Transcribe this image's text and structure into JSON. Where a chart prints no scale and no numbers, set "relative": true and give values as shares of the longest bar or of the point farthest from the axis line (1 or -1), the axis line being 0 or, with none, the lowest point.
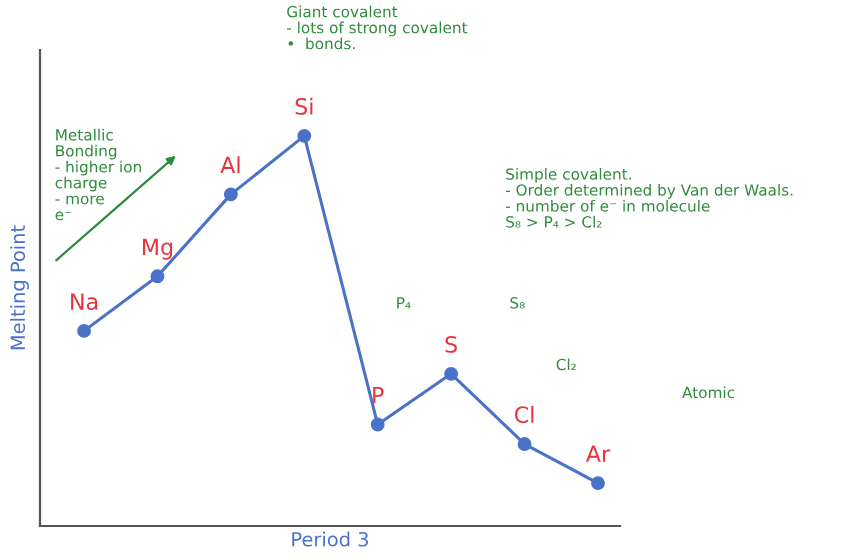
{
  "chart_data": {
    "type": "line",
    "relative": true,
    "xlabel": "Period 3",
    "ylabel": "Melting Point",
    "categories": [
      "Na",
      "Mg",
      "Al",
      "Si",
      "P",
      "S",
      "Cl",
      "Ar"
    ],
    "series": [
      {
        "color": "#4a72c8",
        "values": [
          0.5,
          0.64,
          0.85,
          1,
          0.26,
          0.39,
          0.21,
          0.11
        ]
      }
    ],
    "marker": "circle",
    "line_style": "solid",
    "annotations": [
      "Giant covalent\n- lots of strong covalent\n•  bonds.",
      "Metallic\nBonding\n- higher ion\ncharge\n- more\ne⁻",
      "Simple covalent.\n- Order determined by Van der Waals.\n- number of e⁻ in molecule\nS₈ > P₄ > Cl₂",
      "P₄",
      "S₈",
      "Cl₂",
      "Atomic"
    ]
  }
}
